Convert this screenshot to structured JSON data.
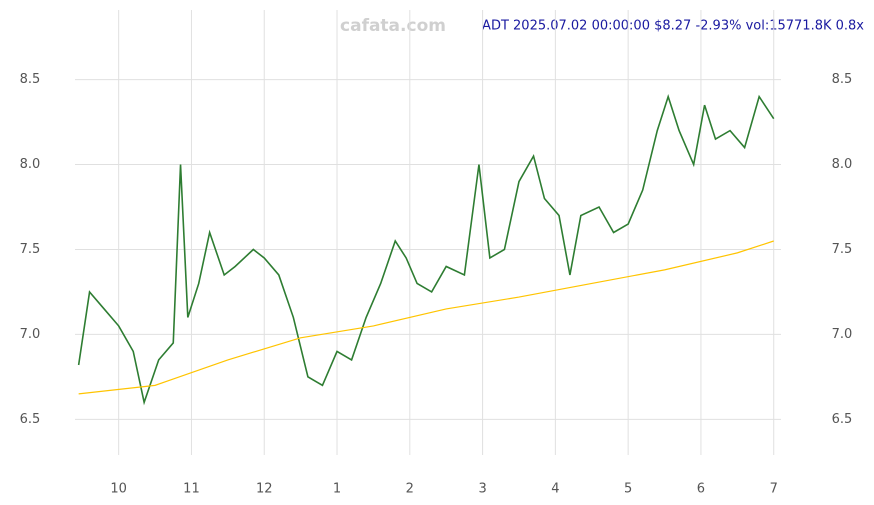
{
  "chart_data": {
    "type": "line",
    "title": "ADT 2025.07.02 00:00:00 $8.27 -2.93% vol:15771.8K 0.8x",
    "watermark": "cafata.com",
    "x": [
      9.45,
      9.6,
      9.8,
      10.0,
      10.2,
      10.35,
      10.55,
      10.75,
      10.85,
      10.95,
      11.1,
      11.25,
      11.45,
      11.6,
      11.85,
      12.0,
      12.2,
      12.4,
      12.6,
      12.8,
      13.0,
      13.2,
      13.4,
      13.6,
      13.8,
      13.95,
      14.1,
      14.3,
      14.5,
      14.75,
      14.95,
      15.1,
      15.3,
      15.5,
      15.7,
      15.85,
      16.05,
      16.2,
      16.35,
      16.6,
      16.8,
      17.0,
      17.2,
      17.4,
      17.55,
      17.7,
      17.9,
      18.05,
      18.2,
      18.4,
      18.6,
      18.8,
      19.0
    ],
    "series": [
      {
        "color": "#2e7d32",
        "values": [
          6.82,
          7.25,
          7.15,
          7.05,
          6.9,
          6.6,
          6.85,
          6.95,
          8.0,
          7.1,
          7.3,
          7.6,
          7.35,
          7.4,
          7.5,
          7.45,
          7.35,
          7.1,
          6.75,
          6.7,
          6.9,
          6.85,
          7.1,
          7.3,
          7.55,
          7.45,
          7.3,
          7.25,
          7.4,
          7.35,
          8.0,
          7.45,
          7.5,
          7.9,
          8.05,
          7.8,
          7.7,
          7.35,
          7.7,
          7.75,
          7.6,
          7.65,
          7.85,
          8.2,
          8.4,
          8.2,
          8.0,
          8.35,
          8.15,
          8.2,
          8.1,
          8.4,
          8.27
        ]
      },
      {
        "color": "#ffc400",
        "x": [
          9.45,
          10.5,
          11.5,
          12.5,
          13.5,
          14.5,
          15.5,
          16.5,
          17.5,
          18.5,
          19.0
        ],
        "values": [
          6.65,
          6.7,
          6.85,
          6.98,
          7.05,
          7.15,
          7.22,
          7.3,
          7.38,
          7.48,
          7.55
        ]
      }
    ],
    "xlim": [
      9.4,
      19.1
    ],
    "xticks": [
      {
        "value": 10,
        "label": "10"
      },
      {
        "value": 11,
        "label": "11"
      },
      {
        "value": 12,
        "label": "12"
      },
      {
        "value": 13,
        "label": "1"
      },
      {
        "value": 14,
        "label": "2"
      },
      {
        "value": 15,
        "label": "3"
      },
      {
        "value": 16,
        "label": "4"
      },
      {
        "value": 17,
        "label": "5"
      },
      {
        "value": 18,
        "label": "6"
      },
      {
        "value": 19,
        "label": "7"
      }
    ],
    "ylim": [
      6.29,
      8.91
    ],
    "yticks": [
      6.5,
      {
        "value": 7.0,
        "label": "7.0"
      },
      7.5,
      {
        "value": 8.0,
        "label": "8.0"
      },
      8.5
    ],
    "grid": true
  }
}
